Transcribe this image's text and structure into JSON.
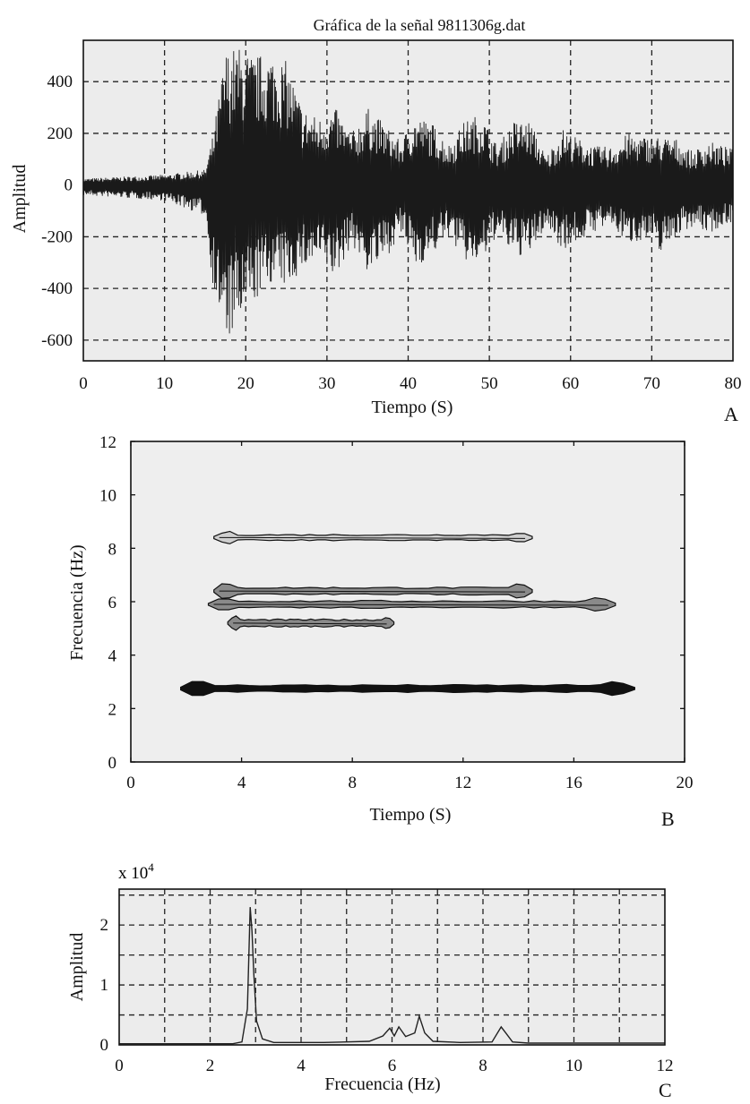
{
  "chart_data": [
    {
      "panel": "A",
      "type": "line",
      "title": "Gráfica de la señal 9811306g.dat",
      "xlabel": "Tiempo (S)",
      "ylabel": "Amplitud",
      "xlim": [
        0,
        80
      ],
      "ylim": [
        -680,
        560
      ],
      "xticks": [
        0,
        10,
        20,
        30,
        40,
        50,
        60,
        70,
        80
      ],
      "yticks": [
        400,
        200,
        0,
        -200,
        -400,
        -600
      ],
      "grid": true,
      "series": [
        {
          "envelope": {
            "t": [
              0,
              10,
              15,
              16,
              17.5,
              19,
              21,
              23,
              25,
              27,
              29,
              31,
              33,
              35,
              37,
              39,
              41,
              43,
              45,
              47,
              49,
              51,
              53,
              55,
              57,
              59,
              61,
              63,
              65,
              67,
              69,
              71,
              73,
              75,
              77,
              80
            ],
            "upper": [
              25,
              40,
              60,
              200,
              520,
              540,
              500,
              520,
              480,
              300,
              260,
              300,
              200,
              300,
              240,
              170,
              270,
              240,
              160,
              250,
              280,
              150,
              250,
              250,
              110,
              220,
              180,
              150,
              150,
              200,
              190,
              190,
              180,
              130,
              170,
              140
            ],
            "lower": [
              -40,
              -60,
              -120,
              -400,
              -620,
              -560,
              -460,
              -380,
              -400,
              -330,
              -300,
              -370,
              -230,
              -340,
              -300,
              -190,
              -320,
              -270,
              -200,
              -300,
              -310,
              -190,
              -280,
              -270,
              -160,
              -250,
              -220,
              -180,
              -160,
              -230,
              -210,
              -260,
              -200,
              -160,
              -190,
              -140
            ]
          }
        }
      ]
    },
    {
      "panel": "B",
      "type": "contour",
      "xlabel": "Tiempo (S)",
      "ylabel": "Frecuencia (Hz)",
      "xlim": [
        0,
        20
      ],
      "ylim": [
        0,
        12
      ],
      "xticks": [
        0,
        4,
        8,
        12,
        16,
        20
      ],
      "yticks": [
        12,
        10,
        8,
        6,
        4,
        2,
        0
      ],
      "bands": [
        {
          "freq": 8.4,
          "t_start": 3.0,
          "t_end": 14.5,
          "half_width": 0.25,
          "density": "low"
        },
        {
          "freq": 6.4,
          "t_start": 3.0,
          "t_end": 14.5,
          "half_width": 0.3,
          "density": "mid"
        },
        {
          "freq": 5.9,
          "t_start": 2.8,
          "t_end": 17.5,
          "half_width": 0.3,
          "density": "mid"
        },
        {
          "freq": 5.2,
          "t_start": 3.5,
          "t_end": 9.5,
          "half_width": 0.3,
          "density": "mid"
        },
        {
          "freq": 2.75,
          "t_start": 1.8,
          "t_end": 18.2,
          "half_width": 0.3,
          "density": "high"
        }
      ]
    },
    {
      "panel": "C",
      "type": "line",
      "xlabel": "Frecuencia (Hz)",
      "ylabel": "Amplitud",
      "scale_note": "x 10",
      "scale_exponent": "4",
      "xlim": [
        0,
        12
      ],
      "ylim": [
        0,
        2.6
      ],
      "xticks": [
        0,
        2,
        4,
        6,
        8,
        10,
        12
      ],
      "yticks": [
        2,
        1,
        0
      ],
      "grid": true,
      "series": [
        {
          "x": [
            0,
            2.5,
            2.7,
            2.82,
            2.88,
            2.92,
            2.96,
            3.02,
            3.15,
            3.4,
            4.5,
            5.5,
            5.8,
            5.95,
            6.05,
            6.15,
            6.3,
            6.5,
            6.6,
            6.72,
            6.9,
            7.5,
            8.2,
            8.4,
            8.5,
            8.65,
            9,
            12
          ],
          "y": [
            0.02,
            0.02,
            0.05,
            0.6,
            2.3,
            1.9,
            1.2,
            0.4,
            0.1,
            0.04,
            0.04,
            0.06,
            0.15,
            0.28,
            0.15,
            0.3,
            0.14,
            0.2,
            0.48,
            0.2,
            0.06,
            0.04,
            0.05,
            0.3,
            0.2,
            0.05,
            0.03,
            0.03
          ]
        }
      ]
    }
  ]
}
